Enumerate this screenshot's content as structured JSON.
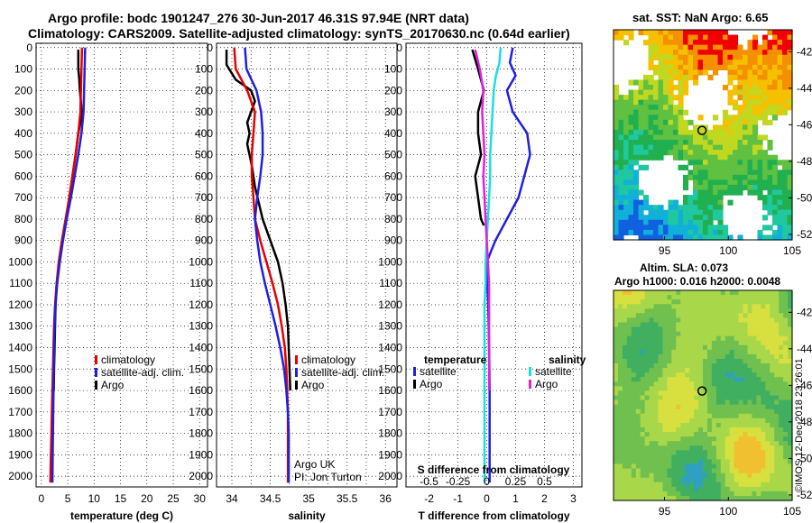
{
  "header": {
    "line1": "Argo profile: bodc 1901247_276 30-Jun-2017 46.31S 97.94E (NRT data)",
    "line2": "Climatology: CARS2009. Satellite-adjusted climatology: synTS_20170630.nc (0.64d earlier)"
  },
  "colors": {
    "red": "#e60000",
    "blue": "#1f1fe0",
    "black": "#000000",
    "cyan": "#19e0e0",
    "magenta": "#e020e0"
  },
  "chart_data": [
    {
      "type": "line",
      "id": "temperature",
      "xlabel": "temperature (deg C)",
      "ylabel": "depth",
      "xlim": [
        -1,
        31.5
      ],
      "ylim": [
        2050,
        -20
      ],
      "xticks": [
        0,
        5,
        10,
        15,
        20,
        25,
        30
      ],
      "yticks": [
        0,
        100,
        200,
        300,
        400,
        500,
        600,
        700,
        800,
        900,
        1000,
        1100,
        1200,
        1300,
        1400,
        1500,
        1600,
        1700,
        1800,
        1900,
        2000
      ],
      "legend": [
        {
          "label": "climatology",
          "color": "red"
        },
        {
          "label": "satellite-adj. clim.",
          "color": "blue"
        },
        {
          "label": "Argo",
          "color": "black"
        }
      ],
      "series": [
        {
          "name": "Argo",
          "color": "black",
          "x": [
            7.0,
            7.0,
            7.2,
            7.3,
            7.5,
            7.6,
            7.4,
            7.0,
            6.5,
            5.9,
            5.3,
            4.7,
            4.0,
            3.4,
            2.9,
            2.7,
            2.6,
            2.5,
            2.4,
            2.35
          ],
          "y": [
            10,
            100,
            150,
            200,
            250,
            300,
            350,
            400,
            500,
            600,
            700,
            800,
            900,
            1000,
            1100,
            1200,
            1300,
            1400,
            1500,
            1600
          ]
        },
        {
          "name": "climatology",
          "color": "red",
          "x": [
            7.7,
            7.6,
            7.5,
            7.4,
            7.0,
            6.5,
            5.9,
            5.3,
            4.6,
            3.9,
            3.3,
            2.9,
            2.6,
            2.4,
            2.3,
            2.2,
            2.1,
            2.0,
            1.9,
            1.8,
            1.7
          ],
          "y": [
            0,
            100,
            200,
            300,
            400,
            500,
            600,
            700,
            800,
            900,
            1000,
            1100,
            1200,
            1300,
            1400,
            1500,
            1600,
            1700,
            1800,
            1900,
            2030
          ]
        },
        {
          "name": "satellite-adj. clim.",
          "color": "blue",
          "x": [
            8.3,
            8.2,
            8.1,
            8.0,
            7.6,
            7.0,
            6.3,
            5.6,
            4.8,
            4.1,
            3.5,
            3.0,
            2.7,
            2.5,
            2.4,
            2.35,
            2.3,
            2.25,
            2.2,
            2.15,
            2.1
          ],
          "y": [
            0,
            100,
            200,
            300,
            400,
            500,
            600,
            700,
            800,
            900,
            1000,
            1100,
            1200,
            1300,
            1400,
            1500,
            1600,
            1700,
            1800,
            1900,
            2030
          ]
        }
      ]
    },
    {
      "type": "line",
      "id": "salinity",
      "xlabel": "salinity",
      "ylabel": "depth",
      "xlim": [
        33.8,
        36.15
      ],
      "ylim": [
        2050,
        -20
      ],
      "xticks": [
        34,
        34.5,
        35,
        35.5,
        36
      ],
      "yticks": [
        0,
        100,
        200,
        300,
        400,
        500,
        600,
        700,
        800,
        900,
        1000,
        1100,
        1200,
        1300,
        1400,
        1500,
        1600,
        1700,
        1800,
        1900,
        2000
      ],
      "legend": [
        {
          "label": "climatology",
          "color": "red"
        },
        {
          "label": "satellite-adj. clim.",
          "color": "blue"
        },
        {
          "label": "Argo",
          "color": "black"
        }
      ],
      "annotations": [
        "Argo UK",
        "PI: Jon Turton"
      ],
      "series": [
        {
          "name": "Argo",
          "color": "black",
          "x": [
            33.93,
            33.93,
            34.05,
            34.25,
            34.3,
            34.25,
            34.2,
            34.23,
            34.2,
            34.26,
            34.3,
            34.4,
            34.5,
            34.6,
            34.66,
            34.7,
            34.73,
            34.74,
            34.75,
            34.76
          ],
          "y": [
            10,
            80,
            150,
            200,
            250,
            300,
            350,
            400,
            450,
            550,
            650,
            800,
            900,
            1000,
            1100,
            1200,
            1300,
            1400,
            1500,
            1600
          ]
        },
        {
          "name": "climatology",
          "color": "red",
          "x": [
            34.03,
            34.05,
            34.2,
            34.3,
            34.28,
            34.26,
            34.26,
            34.28,
            34.3,
            34.37,
            34.45,
            34.53,
            34.6,
            34.65,
            34.69,
            34.71,
            34.72,
            34.73,
            34.73,
            34.73,
            34.73
          ],
          "y": [
            0,
            100,
            200,
            300,
            400,
            500,
            600,
            700,
            800,
            900,
            1000,
            1100,
            1200,
            1300,
            1400,
            1500,
            1600,
            1700,
            1800,
            1900,
            2030
          ]
        },
        {
          "name": "satellite-adj. clim.",
          "color": "blue",
          "x": [
            34.17,
            34.19,
            34.32,
            34.38,
            34.4,
            34.4,
            34.37,
            34.33,
            34.3,
            34.33,
            34.37,
            34.43,
            34.5,
            34.57,
            34.63,
            34.68,
            34.71,
            34.73,
            34.74,
            34.74,
            34.74
          ],
          "y": [
            0,
            100,
            200,
            300,
            400,
            500,
            600,
            700,
            800,
            900,
            1000,
            1100,
            1200,
            1300,
            1400,
            1500,
            1600,
            1700,
            1800,
            1900,
            2030
          ]
        }
      ]
    },
    {
      "type": "line",
      "id": "difference",
      "xlabel": "T difference from climatology",
      "xlabel2": "S difference from climatology",
      "ylabel": "depth",
      "xlim": [
        -2.8,
        3.3
      ],
      "ylim": [
        2050,
        -20
      ],
      "xticks": [
        -2,
        -1,
        0,
        1,
        2,
        3
      ],
      "xticks2": [
        -0.5,
        -0.25,
        0,
        0.25,
        0.5
      ],
      "xticks2_labels": [
        "-0.5",
        "-0.25",
        "0",
        "0.25",
        "0.5"
      ],
      "yticks": [
        0,
        100,
        200,
        300,
        400,
        500,
        600,
        700,
        800,
        900,
        1000,
        1100,
        1200,
        1300,
        1400,
        1500,
        1600,
        1700,
        1800,
        1900,
        2000
      ],
      "legend_temperature_title": "temperature",
      "legend_salinity_title": "salinity",
      "legend": [
        {
          "label": "satellite",
          "color": "blue",
          "group": "temperature"
        },
        {
          "label": "Argo",
          "color": "black",
          "group": "temperature"
        },
        {
          "label": "satellite",
          "color": "cyan",
          "group": "salinity"
        },
        {
          "label": "Argo",
          "color": "magenta",
          "group": "salinity"
        }
      ],
      "series": [
        {
          "name": "T satellite",
          "color": "blue",
          "x": [
            0.9,
            0.8,
            1.0,
            0.7,
            0.9,
            1.4,
            1.5,
            1.3,
            1.1,
            0.7,
            0.3,
            0.0,
            0.02,
            0.05,
            0.07,
            0.08,
            0.09,
            0.1,
            0.1,
            0.1,
            0.1
          ],
          "y": [
            0,
            70,
            130,
            200,
            300,
            400,
            500,
            600,
            700,
            800,
            900,
            1000,
            1100,
            1200,
            1300,
            1400,
            1500,
            1600,
            1700,
            1800,
            2030
          ]
        },
        {
          "name": "T Argo",
          "color": "black",
          "x": [
            -0.5,
            -0.3,
            -0.1,
            -0.3,
            -0.3,
            -0.2,
            -0.4,
            -0.3,
            -0.2,
            -0.1
          ],
          "y": [
            10,
            100,
            200,
            300,
            400,
            500,
            600,
            700,
            800,
            830
          ]
        },
        {
          "name": "S satellite",
          "color": "cyan",
          "x": [
            0.12,
            0.11,
            0.08,
            0.06,
            0.05,
            0.04,
            0.03,
            0.03,
            0.02,
            0.01,
            0.0,
            -0.01,
            -0.01,
            -0.02,
            -0.02,
            -0.02,
            -0.02,
            -0.02,
            -0.02,
            -0.02,
            -0.02
          ],
          "y": [
            0,
            70,
            130,
            200,
            300,
            400,
            500,
            600,
            700,
            800,
            900,
            1000,
            1100,
            1200,
            1300,
            1400,
            1500,
            1600,
            1700,
            1800,
            2030
          ]
        },
        {
          "name": "S Argo",
          "color": "magenta",
          "x": [
            -0.1,
            -0.06,
            -0.03,
            -0.04,
            -0.03,
            -0.02,
            -0.03,
            -0.02,
            -0.01,
            0.0,
            0.01,
            0.02,
            0.02,
            0.02,
            0.02,
            0.02
          ],
          "y": [
            10,
            100,
            200,
            300,
            400,
            500,
            600,
            700,
            800,
            900,
            1000,
            1100,
            1200,
            1300,
            1400,
            1600
          ]
        }
      ]
    },
    {
      "type": "heatmap",
      "id": "sst-map",
      "title": "sat. SST: NaN Argo: 6.65",
      "xlim": [
        91,
        105
      ],
      "ylim": [
        -52.3,
        -40.8
      ],
      "xticks": [
        95,
        100,
        105
      ],
      "yticks": [
        -42,
        -44,
        -46,
        -48,
        -50,
        -52
      ],
      "yticklabels": [
        "-42",
        "-44",
        "-46",
        "-48",
        "-50",
        "-52"
      ],
      "argo_position": {
        "lon": 97.94,
        "lat": -46.31
      },
      "colormap": [
        "#f00000",
        "#f59000",
        "#f5c000",
        "#c0d820",
        "#60c040",
        "#20b050",
        "#20c8a0",
        "#10b0d8",
        "#1060e0"
      ]
    },
    {
      "type": "heatmap",
      "id": "sla-map",
      "title": "Altim. SLA: 0.073",
      "subtitle": "Argo h1000: 0.016 h2000: 0.0048",
      "xlim": [
        91,
        105
      ],
      "ylim": [
        -52.3,
        -40.8
      ],
      "xticks": [
        95,
        100,
        105
      ],
      "yticks": [
        -42,
        -44,
        -46,
        -48,
        -50,
        -52
      ],
      "yticklabels": [
        "-42",
        "-44",
        "-46",
        "-48",
        "-50",
        "-52"
      ],
      "argo_position": {
        "lon": 97.94,
        "lat": -46.31
      },
      "colormap": [
        "#30a0c0",
        "#40b060",
        "#70c050",
        "#a8d84a",
        "#d8e040",
        "#f0c030"
      ]
    }
  ],
  "stamp": "©IMOS 12-Dec-2018 23:26:01"
}
